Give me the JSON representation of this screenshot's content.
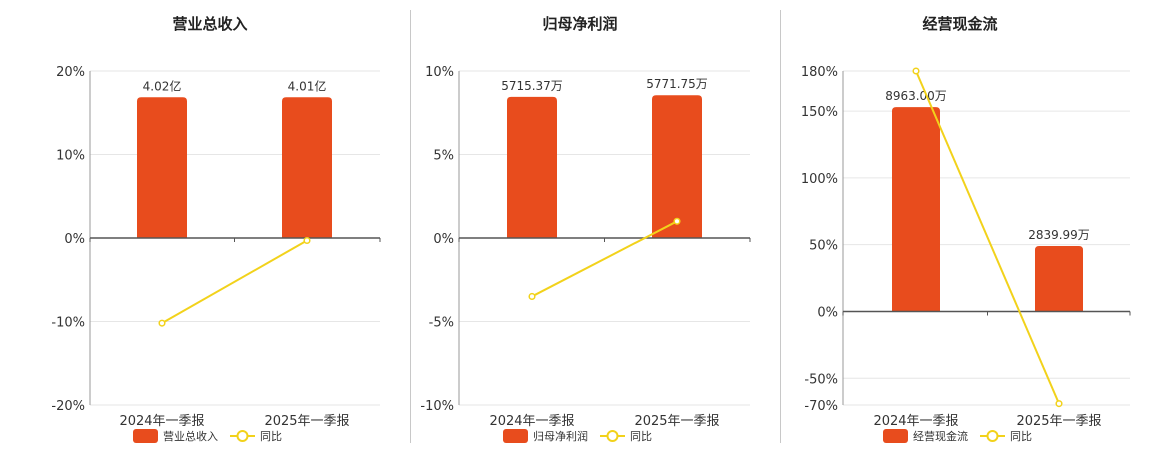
{
  "colors": {
    "bar": "#e84c1d",
    "line": "#f2d21b",
    "grid": "#e6e6e6",
    "axis": "#555555"
  },
  "chart_data": [
    {
      "type": "bar",
      "title": "营业总收入",
      "categories": [
        "2024年一季报",
        "2025年一季报"
      ],
      "bar_labels": [
        "4.02亿",
        "4.01亿"
      ],
      "series": [
        {
          "name": "营业总收入",
          "type": "bar",
          "values": [
            16.85,
            16.85
          ]
        },
        {
          "name": "同比",
          "type": "line",
          "values": [
            -10.2,
            -0.3
          ]
        }
      ],
      "y_ticks": [
        "20%",
        "10%",
        "0%",
        "-10%",
        "-20%"
      ],
      "ylim": [
        -20,
        20
      ],
      "legend_position": "bottom"
    },
    {
      "type": "bar",
      "title": "归母净利润",
      "categories": [
        "2024年一季报",
        "2025年一季报"
      ],
      "bar_labels": [
        "5715.37万",
        "5771.75万"
      ],
      "series": [
        {
          "name": "归母净利润",
          "type": "bar",
          "values": [
            8.45,
            8.55
          ]
        },
        {
          "name": "同比",
          "type": "line",
          "values": [
            -3.5,
            1.0
          ]
        }
      ],
      "y_ticks": [
        "10%",
        "5%",
        "0%",
        "-5%",
        "-10%"
      ],
      "ylim": [
        -10,
        10
      ],
      "legend_position": "bottom"
    },
    {
      "type": "bar",
      "title": "经营现金流",
      "categories": [
        "2024年一季报",
        "2025年一季报"
      ],
      "bar_labels": [
        "8963.00万",
        "2839.99万"
      ],
      "series": [
        {
          "name": "经营现金流",
          "type": "bar",
          "values": [
            153,
            49
          ]
        },
        {
          "name": "同比",
          "type": "line",
          "values": [
            180,
            -69
          ]
        }
      ],
      "y_ticks": [
        "180%",
        "150%",
        "100%",
        "50%",
        "0%",
        "-50%",
        "-70%"
      ],
      "y_tick_values": [
        180,
        150,
        100,
        50,
        0,
        -50,
        -70
      ],
      "ylim": [
        -70,
        180
      ],
      "legend_position": "bottom"
    }
  ]
}
